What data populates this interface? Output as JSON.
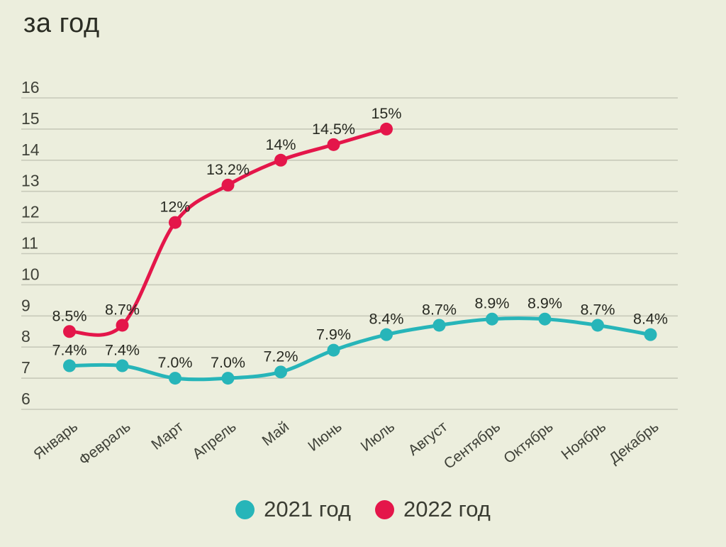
{
  "title": "за год",
  "colors": {
    "background": "#eceedd",
    "gridline": "#c7c9ba",
    "tick_text": "#3f4138",
    "data_label_text": "#282a22",
    "series_2021": "#27b5b9",
    "series_2022": "#e4164a"
  },
  "chart_data": {
    "type": "line",
    "title": "за год",
    "categories": [
      "Январь",
      "Февраль",
      "Март",
      "Апрель",
      "Май",
      "Июнь",
      "Июль",
      "Август",
      "Сентябрь",
      "Октябрь",
      "Ноябрь",
      "Декабрь"
    ],
    "series": [
      {
        "name": "2021 год",
        "color_key": "series_2021",
        "values": [
          7.4,
          7.4,
          7.0,
          7.0,
          7.2,
          7.9,
          8.4,
          8.7,
          8.9,
          8.9,
          8.7,
          8.4
        ],
        "labels": [
          "7.4%",
          "7.4%",
          "7.0%",
          "7.0%",
          "7.2%",
          "7.9%",
          "8.4%",
          "8.7%",
          "8.9%",
          "8.9%",
          "8.7%",
          "8.4%"
        ]
      },
      {
        "name": "2022 год",
        "color_key": "series_2022",
        "values": [
          8.5,
          8.7,
          12,
          13.2,
          14,
          14.5,
          15
        ],
        "labels": [
          "8.5%",
          "8.7%",
          "12%",
          "13.2%",
          "14%",
          "14.5%",
          "15%"
        ]
      }
    ],
    "y_ticks": [
      16,
      15,
      14,
      13,
      12,
      11,
      10,
      9,
      8,
      7,
      6
    ],
    "ylim": [
      6,
      16
    ],
    "xlabel": "",
    "ylabel": "",
    "grid": true,
    "legend_position": "bottom"
  }
}
